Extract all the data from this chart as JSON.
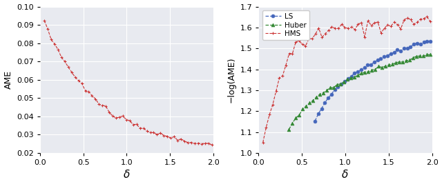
{
  "left_xlim": [
    0.0,
    2.0
  ],
  "left_ylim": [
    0.02,
    0.1
  ],
  "left_yticks": [
    0.02,
    0.03,
    0.04,
    0.05,
    0.06,
    0.07,
    0.08,
    0.09,
    0.1
  ],
  "left_xticks": [
    0.0,
    0.5,
    1.0,
    1.5,
    2.0
  ],
  "left_xlabel": "δ",
  "left_ylabel": "AME",
  "right_xlim": [
    0.0,
    2.0
  ],
  "right_ylim": [
    1.0,
    1.7
  ],
  "right_yticks": [
    1.0,
    1.1,
    1.2,
    1.3,
    1.4,
    1.5,
    1.6,
    1.7
  ],
  "right_xticks": [
    0.0,
    0.5,
    1.0,
    1.5,
    2.0
  ],
  "right_xlabel": "δ",
  "right_ylabel": "−log(AME)",
  "bg_color": "#e8eaf0",
  "grid_color": "white",
  "red_color": "#cc3333",
  "blue_color": "#4466bb",
  "green_color": "#338833",
  "legend_labels": [
    "LS",
    "Huber",
    "HMS"
  ],
  "legend_colors": [
    "#4466bb",
    "#338833",
    "#cc3333"
  ],
  "legend_markers": [
    "o",
    "^",
    "+"
  ]
}
